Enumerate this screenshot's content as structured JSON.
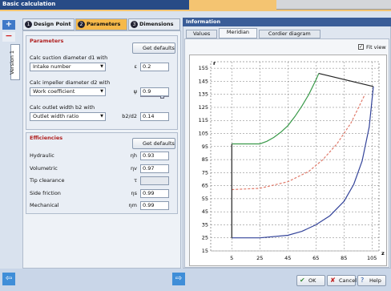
{
  "window": {
    "title": "Basic calculation"
  },
  "side": {
    "version": "Version 1"
  },
  "tabs": [
    {
      "num": "1",
      "label": "Design Point"
    },
    {
      "num": "2",
      "label": "Parameters"
    },
    {
      "num": "3",
      "label": "Dimensions"
    }
  ],
  "parameters": {
    "title": "Parameters",
    "button": "Get defaults",
    "rows": [
      {
        "label": "Calc suction diameter d1 with",
        "select": "Intake number",
        "symbol": "ε",
        "value": "0.2"
      },
      {
        "label": "Calc impeller diameter d2 with",
        "select": "Work coefficient",
        "symbol": "ψ",
        "value": "0.9"
      },
      {
        "label": "Calc outlet width b2 with",
        "select": "Outlet width ratio",
        "symbol": "b2/d2",
        "value": "0.14"
      }
    ]
  },
  "efficiencies": {
    "title": "Efficiencies",
    "button": "Get defaults",
    "rows": [
      {
        "label": "Hydraulic",
        "symbol": "ηh",
        "value": "0.93"
      },
      {
        "label": "Volumetric",
        "symbol": "ηv",
        "value": "0.97"
      },
      {
        "label": "Tip clearance",
        "symbol": "τ"
      },
      {
        "label": "Side friction",
        "symbol": "ηs",
        "value": "0.99"
      },
      {
        "label": "Mechanical",
        "symbol": "ηm",
        "value": "0.99"
      }
    ]
  },
  "info": {
    "title": "Information",
    "tabs": [
      "Values",
      "Meridian",
      "Cordier diagram"
    ],
    "fit_view": "Fit view"
  },
  "chart_data": {
    "type": "line",
    "ylabel": "r",
    "xlabel": "z",
    "grid": true,
    "xlim": [
      -10,
      110
    ],
    "ylim": [
      15,
      160
    ],
    "xticks": [
      5,
      25,
      45,
      65,
      85,
      105
    ],
    "yticks": [
      15,
      25,
      35,
      45,
      55,
      65,
      75,
      85,
      95,
      105,
      115,
      125,
      135,
      145,
      155
    ],
    "series": [
      {
        "color": "#3a9a4a",
        "dashed": false,
        "x": [
          5,
          15,
          25,
          30,
          35,
          40,
          45,
          50,
          55,
          60,
          65,
          67
        ],
        "values": [
          97,
          97,
          97,
          99,
          102,
          106,
          111,
          118,
          126,
          135,
          146,
          151
        ]
      },
      {
        "color": "#34449a",
        "dashed": false,
        "x": [
          5,
          25,
          45,
          55,
          65,
          75,
          85,
          92,
          98,
          103,
          106
        ],
        "values": [
          25,
          25,
          27,
          30,
          35,
          42,
          53,
          66,
          84,
          110,
          141
        ]
      },
      {
        "color": "#e07a6a",
        "dashed": true,
        "x": [
          5,
          25,
          45,
          60,
          70,
          80,
          90,
          100
        ],
        "values": [
          62,
          63,
          68,
          76,
          85,
          97,
          113,
          135
        ]
      },
      {
        "color": "#222222",
        "dashed": false,
        "x": [
          5,
          5,
          null,
          67,
          106
        ],
        "values": [
          25,
          97,
          null,
          151,
          141
        ]
      }
    ]
  },
  "footer": {
    "buttons": [
      "OK",
      "Cancel",
      "Help"
    ]
  }
}
